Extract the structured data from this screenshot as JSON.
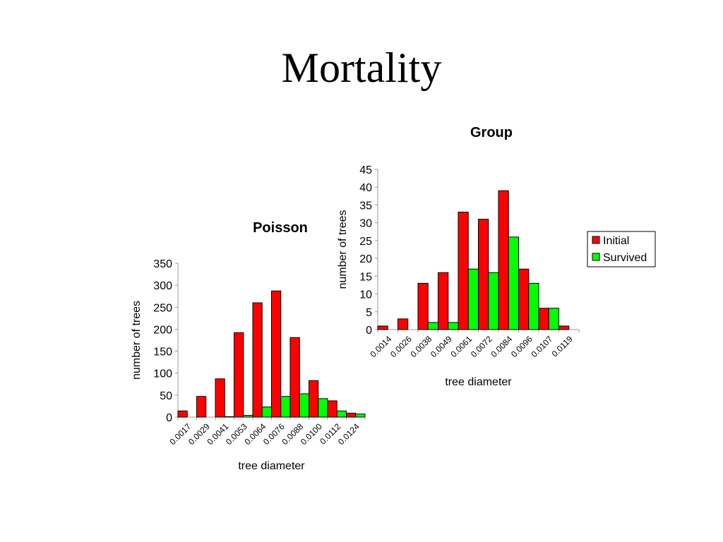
{
  "slide_title": "Mortality",
  "colors": {
    "initial": "#ff0000",
    "survived": "#00ff00"
  },
  "legend": {
    "placement": "right",
    "items": [
      "Initial",
      "Survived"
    ]
  },
  "chart_data": [
    {
      "type": "bar",
      "title": "Poisson",
      "xlabel": "tree diameter",
      "ylabel": "number of trees",
      "ylim": [
        0,
        350
      ],
      "yticks": [
        "0",
        "50",
        "100",
        "150",
        "200",
        "250",
        "300",
        "350"
      ],
      "categories": [
        "0.0017",
        "0.0029",
        "0.0041",
        "0.0053",
        "0.0064",
        "0.0076",
        "0.0088",
        "0.0100",
        "0.0112",
        "0.0124"
      ],
      "series": [
        {
          "name": "Initial",
          "values": [
            14,
            47,
            87,
            192,
            260,
            287,
            181,
            83,
            37,
            9
          ]
        },
        {
          "name": "Survived",
          "values": [
            0,
            0,
            1,
            4,
            23,
            47,
            53,
            42,
            14,
            7
          ]
        }
      ]
    },
    {
      "type": "bar",
      "title": "Group",
      "xlabel": "tree diameter",
      "ylabel": "number of trees",
      "ylim": [
        0,
        45
      ],
      "yticks": [
        "0",
        "5",
        "10",
        "15",
        "20",
        "25",
        "30",
        "35",
        "40",
        "45"
      ],
      "categories": [
        "0.0014",
        "0.0026",
        "0.0038",
        "0.0049",
        "0.0061",
        "0.0072",
        "0.0084",
        "0.0096",
        "0.0107",
        "0.0119"
      ],
      "series": [
        {
          "name": "Initial",
          "values": [
            1,
            3,
            13,
            16,
            33,
            31,
            39,
            17,
            6,
            1
          ]
        },
        {
          "name": "Survived",
          "values": [
            0,
            0,
            2,
            2,
            17,
            16,
            26,
            13,
            6,
            0
          ]
        }
      ]
    }
  ]
}
